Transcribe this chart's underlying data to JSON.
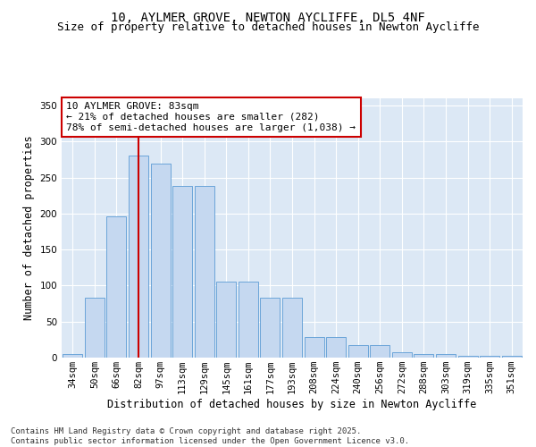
{
  "title_line1": "10, AYLMER GROVE, NEWTON AYCLIFFE, DL5 4NF",
  "title_line2": "Size of property relative to detached houses in Newton Aycliffe",
  "xlabel": "Distribution of detached houses by size in Newton Aycliffe",
  "ylabel": "Number of detached properties",
  "categories": [
    "34sqm",
    "50sqm",
    "66sqm",
    "82sqm",
    "97sqm",
    "113sqm",
    "129sqm",
    "145sqm",
    "161sqm",
    "177sqm",
    "193sqm",
    "208sqm",
    "224sqm",
    "240sqm",
    "256sqm",
    "272sqm",
    "288sqm",
    "303sqm",
    "319sqm",
    "335sqm",
    "351sqm"
  ],
  "bar_values": [
    5,
    83,
    196,
    280,
    270,
    238,
    238,
    105,
    105,
    83,
    83,
    28,
    28,
    17,
    17,
    8,
    5,
    5,
    3,
    3,
    3
  ],
  "bar_color": "#c5d8f0",
  "bar_edge_color": "#5b9bd5",
  "vline_index": 3,
  "vline_color": "#cc0000",
  "annotation_text": "10 AYLMER GROVE: 83sqm\n← 21% of detached houses are smaller (282)\n78% of semi-detached houses are larger (1,038) →",
  "annotation_box_facecolor": "white",
  "annotation_box_edgecolor": "#cc0000",
  "ylim": [
    0,
    360
  ],
  "yticks": [
    0,
    50,
    100,
    150,
    200,
    250,
    300,
    350
  ],
  "plot_bg_color": "#dce8f5",
  "fig_bg_color": "#ffffff",
  "grid_color": "#ffffff",
  "footer_text": "Contains HM Land Registry data © Crown copyright and database right 2025.\nContains public sector information licensed under the Open Government Licence v3.0.",
  "title_fontsize": 10,
  "subtitle_fontsize": 9,
  "axis_label_fontsize": 8.5,
  "tick_fontsize": 7.5,
  "annotation_fontsize": 8,
  "footer_fontsize": 6.5
}
